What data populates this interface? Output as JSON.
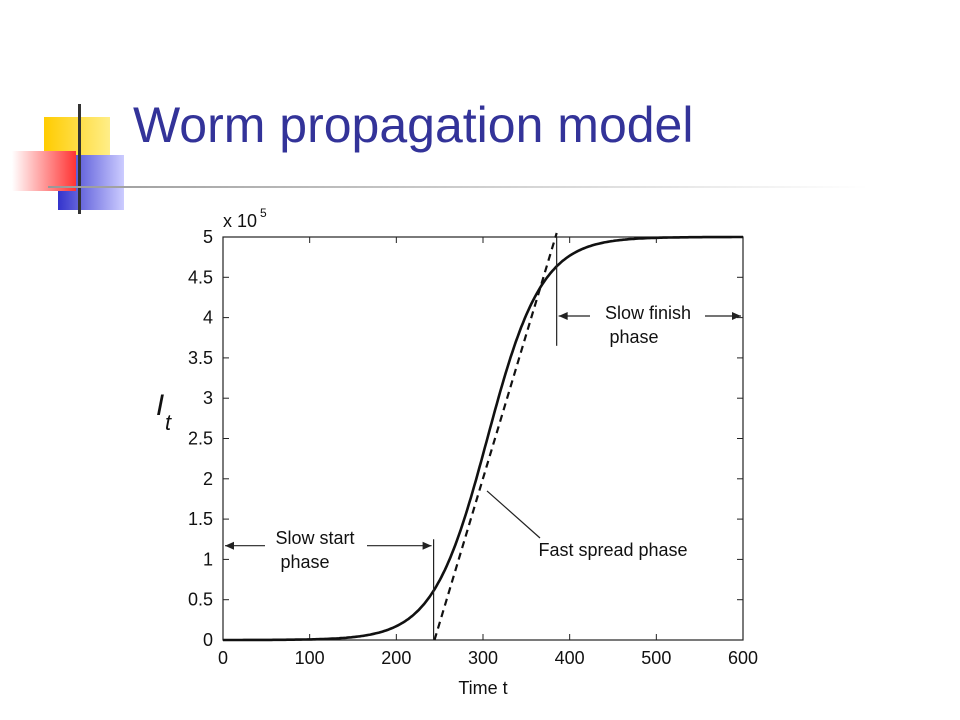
{
  "slide": {
    "title": "Worm propagation model"
  },
  "colors": {
    "title": "#333399",
    "accent_yellow": "#ffcc00",
    "accent_blue": "#3333cc",
    "accent_red": "#ff3333"
  },
  "chart_data": {
    "type": "line",
    "title": "",
    "xlabel": "Time t",
    "ylabel": "I_t",
    "ylabel_main": "I",
    "ylabel_sub": "t",
    "y_multiplier": "x 10",
    "y_multiplier_exp": "5",
    "xlim": [
      0,
      600
    ],
    "ylim": [
      0,
      5
    ],
    "xticks": [
      0,
      100,
      200,
      300,
      400,
      500,
      600
    ],
    "xtick_labels": [
      "0",
      "100",
      "200",
      "300",
      "400",
      "500",
      "600"
    ],
    "yticks": [
      0,
      0.5,
      1,
      1.5,
      2,
      2.5,
      3,
      3.5,
      4,
      4.5,
      5
    ],
    "ytick_labels": [
      "0",
      "0.5",
      "1",
      "1.5",
      "2",
      "2.5",
      "3",
      "3.5",
      "4",
      "4.5",
      "5"
    ],
    "grid": false,
    "series": [
      {
        "style": "solid",
        "model": "logistic",
        "N": 5,
        "midpoint": 305,
        "rate": 0.0318,
        "x": [
          0,
          100,
          150,
          200,
          225,
          250,
          275,
          300,
          325,
          350,
          375,
          400,
          450,
          500,
          600
        ],
        "y": [
          0.0,
          0.01,
          0.04,
          0.17,
          0.34,
          0.74,
          1.39,
          2.4,
          3.26,
          4.03,
          4.52,
          4.77,
          4.97,
          4.99,
          5.0
        ]
      },
      {
        "style": "dashed",
        "x": [
          244,
          385
        ],
        "y": [
          0,
          5.05
        ]
      }
    ],
    "annotations": [
      {
        "id": "slow-start",
        "lines": [
          "Slow start",
          "phase"
        ],
        "x_from": 0,
        "x_to": 243,
        "y": 1.17
      },
      {
        "id": "fast-spread",
        "lines": [
          "Fast spread phase"
        ],
        "pointer_to": [
          300,
          1.85
        ]
      },
      {
        "id": "slow-finish",
        "lines": [
          "Slow finish",
          "phase"
        ],
        "x_from": 385,
        "x_to": 600,
        "y": 4.02
      }
    ],
    "marker_lines": [
      {
        "x": 243,
        "y_from": 0,
        "y_to": 1.25
      },
      {
        "x": 385,
        "y_from": 3.65,
        "y_to": 5.0
      }
    ]
  }
}
